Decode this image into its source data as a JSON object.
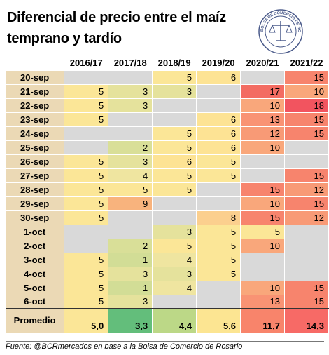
{
  "title": "Diferencial de precio entre el maíz temprano y tardío",
  "logo_text": "BOLSA DE COMERCIO DE ROSARIO",
  "source": "Fuente: @BCRmercados en base a la Bolsa de Comercio de Rosario",
  "colors": {
    "empty": "#d9d9d9",
    "scale": {
      "1": "#d2dd96",
      "2": "#d9df98",
      "3": "#e5e29c",
      "4": "#efe5a0",
      "5": "#fbe697",
      "6": "#fde394",
      "8": "#fbcf8e",
      "9": "#f8b37d",
      "10": "#f9a77b",
      "12": "#f89a76",
      "13": "#f99374",
      "15": "#f7846d",
      "17": "#f36c62",
      "18": "#f2545f"
    },
    "averages": [
      "#fbe697",
      "#63be7b",
      "#bcd887",
      "#fce592",
      "#f8846b",
      "#f76a66"
    ]
  },
  "chart_data": {
    "type": "table",
    "title": "Diferencial de precio entre el maíz temprano y tardío",
    "columns": [
      "2016/17",
      "2017/18",
      "2018/19",
      "2019/20",
      "2020/21",
      "2021/22"
    ],
    "rows": [
      {
        "label": "20-sep",
        "values": [
          null,
          null,
          5,
          6,
          null,
          15
        ]
      },
      {
        "label": "21-sep",
        "values": [
          5,
          3,
          3,
          null,
          17,
          10
        ]
      },
      {
        "label": "22-sep",
        "values": [
          5,
          3,
          null,
          null,
          10,
          18
        ]
      },
      {
        "label": "23-sep",
        "values": [
          5,
          null,
          null,
          6,
          13,
          15
        ]
      },
      {
        "label": "24-sep",
        "values": [
          null,
          null,
          5,
          6,
          12,
          15
        ]
      },
      {
        "label": "25-sep",
        "values": [
          null,
          2,
          5,
          6,
          10,
          null
        ]
      },
      {
        "label": "26-sep",
        "values": [
          5,
          3,
          6,
          5,
          null,
          null
        ]
      },
      {
        "label": "27-sep",
        "values": [
          5,
          4,
          5,
          5,
          null,
          15
        ]
      },
      {
        "label": "28-sep",
        "values": [
          5,
          5,
          5,
          null,
          15,
          12
        ]
      },
      {
        "label": "29-sep",
        "values": [
          5,
          9,
          null,
          null,
          10,
          15
        ]
      },
      {
        "label": "30-sep",
        "values": [
          5,
          null,
          null,
          8,
          15,
          12
        ]
      },
      {
        "label": "1-oct",
        "values": [
          null,
          null,
          3,
          5,
          5,
          null
        ]
      },
      {
        "label": "2-oct",
        "values": [
          null,
          2,
          5,
          5,
          10,
          null
        ]
      },
      {
        "label": "3-oct",
        "values": [
          5,
          1,
          4,
          5,
          null,
          null
        ]
      },
      {
        "label": "4-oct",
        "values": [
          5,
          3,
          3,
          5,
          null,
          null
        ]
      },
      {
        "label": "5-oct",
        "values": [
          5,
          1,
          4,
          null,
          10,
          15
        ]
      },
      {
        "label": "6-oct",
        "values": [
          5,
          3,
          null,
          null,
          13,
          15
        ]
      }
    ],
    "average_label": "Promedio",
    "averages": [
      "5,0",
      "3,3",
      "4,4",
      "5,6",
      "11,7",
      "14,3"
    ]
  }
}
